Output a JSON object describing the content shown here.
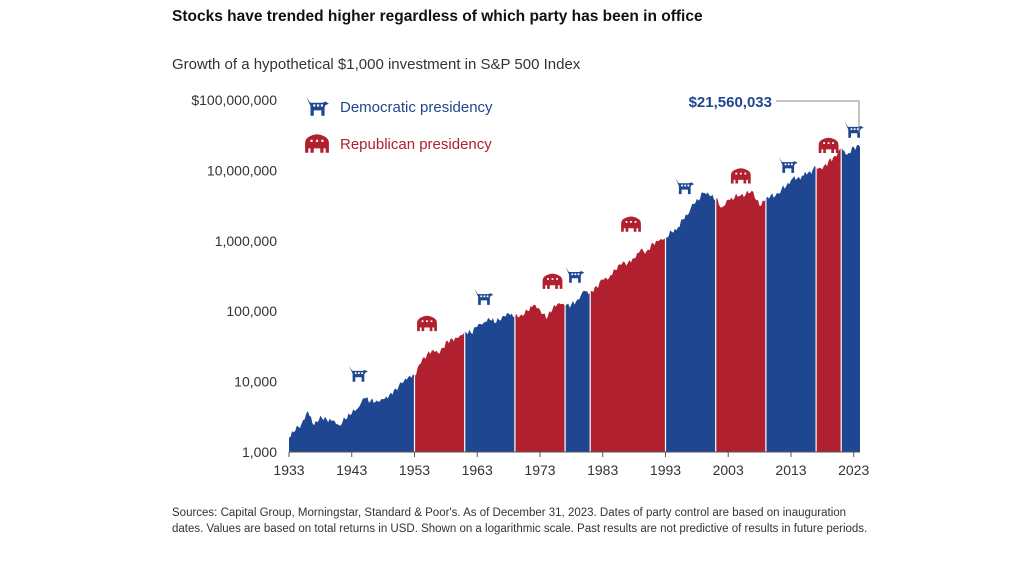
{
  "headline": "Stocks have trended higher regardless of which party has been in office",
  "footnote": "Sources: Capital Group, Morningstar, Standard & Poor's. As of December 31, 2023. Dates of party control are based on inauguration dates. Values are based on total returns in USD. Shown on a logarithmic scale. Past results are not predictive of results in future periods.",
  "colors": {
    "democratic": "#1f4690",
    "republican": "#b0202e",
    "axis": "#555555",
    "text": "#333333"
  },
  "chart_data": {
    "type": "area",
    "title": "Growth of a hypothetical $1,000 investment in S&P 500 Index",
    "scale": "log",
    "xlim": [
      1933,
      2024
    ],
    "ylim": [
      1000,
      100000000
    ],
    "x_ticks": [
      "1933",
      "1943",
      "1953",
      "1963",
      "1973",
      "1983",
      "1993",
      "2003",
      "2013",
      "2023"
    ],
    "y_ticks": [
      {
        "value": 1000,
        "label": "1,000"
      },
      {
        "value": 10000,
        "label": "10,000"
      },
      {
        "value": 100000,
        "label": "100,000"
      },
      {
        "value": 1000000,
        "label": "1,000,000"
      },
      {
        "value": 10000000,
        "label": "10,000,000"
      },
      {
        "value": 100000000,
        "label": "$100,000,000"
      }
    ],
    "legend": [
      {
        "party": "D",
        "label": "Democratic presidency",
        "icon": "donkey-icon"
      },
      {
        "party": "R",
        "label": "Republican presidency",
        "icon": "elephant-icon"
      }
    ],
    "periods": [
      {
        "party": "D",
        "start": 1933,
        "end": 1953
      },
      {
        "party": "R",
        "start": 1953,
        "end": 1961
      },
      {
        "party": "D",
        "start": 1961,
        "end": 1969
      },
      {
        "party": "R",
        "start": 1969,
        "end": 1977
      },
      {
        "party": "D",
        "start": 1977,
        "end": 1981
      },
      {
        "party": "R",
        "start": 1981,
        "end": 1993
      },
      {
        "party": "D",
        "start": 1993,
        "end": 2001
      },
      {
        "party": "R",
        "start": 2001,
        "end": 2009
      },
      {
        "party": "D",
        "start": 2009,
        "end": 2017
      },
      {
        "party": "R",
        "start": 2017,
        "end": 2021
      },
      {
        "party": "D",
        "start": 2021,
        "end": 2024
      }
    ],
    "series": [
      {
        "name": "Growth of $1,000",
        "x": [
          1933,
          1934,
          1935,
          1936,
          1937,
          1938,
          1939,
          1940,
          1941,
          1942,
          1943,
          1944,
          1945,
          1946,
          1947,
          1948,
          1949,
          1950,
          1951,
          1952,
          1953,
          1954,
          1955,
          1956,
          1957,
          1958,
          1959,
          1960,
          1961,
          1962,
          1963,
          1964,
          1965,
          1966,
          1967,
          1968,
          1969,
          1970,
          1971,
          1972,
          1973,
          1974,
          1975,
          1976,
          1977,
          1978,
          1979,
          1980,
          1981,
          1982,
          1983,
          1984,
          1985,
          1986,
          1987,
          1988,
          1989,
          1990,
          1991,
          1992,
          1993,
          1995,
          1997,
          1999,
          2000,
          2001,
          2002,
          2003,
          2005,
          2007,
          2008,
          2009,
          2011,
          2013,
          2015,
          2017,
          2018,
          2019,
          2020,
          2021,
          2022,
          2023,
          2024
        ],
        "values": [
          1600,
          2000,
          2500,
          3800,
          2400,
          3300,
          2900,
          2800,
          2400,
          2900,
          3500,
          4200,
          5800,
          5300,
          5400,
          5600,
          6500,
          8000,
          9500,
          11500,
          12000,
          18000,
          24000,
          28000,
          25000,
          37000,
          41000,
          42000,
          52000,
          49000,
          60000,
          68000,
          76000,
          68000,
          84000,
          93000,
          86000,
          90000,
          102000,
          123000,
          105000,
          77000,
          106000,
          131000,
          118000,
          125000,
          148000,
          196000,
          186000,
          226000,
          277000,
          294000,
          387000,
          459000,
          483000,
          563000,
          740000,
          718000,
          935000,
          1010000,
          1110000,
          1560000,
          2870000,
          4830000,
          4400000,
          3880000,
          3000000,
          3860000,
          4440000,
          4950000,
          3120000,
          3950000,
          4720000,
          7250000,
          8400000,
          10900000,
          10400000,
          13700000,
          16200000,
          20800000,
          17000000,
          21560033,
          21560033
        ]
      }
    ],
    "icons": [
      {
        "party": "D",
        "x": 1944,
        "y": 13000
      },
      {
        "party": "R",
        "x": 1955,
        "y": 68000
      },
      {
        "party": "D",
        "x": 1964,
        "y": 160000
      },
      {
        "party": "R",
        "x": 1975,
        "y": 270000
      },
      {
        "party": "D",
        "x": 1978.5,
        "y": 330000
      },
      {
        "party": "R",
        "x": 1987.5,
        "y": 1750000
      },
      {
        "party": "D",
        "x": 1996,
        "y": 6000000
      },
      {
        "party": "R",
        "x": 2005,
        "y": 8500000
      },
      {
        "party": "D",
        "x": 2012.5,
        "y": 12000000
      },
      {
        "party": "R",
        "x": 2019,
        "y": 23000000
      },
      {
        "party": "D",
        "x": 2023,
        "y": 38000000
      }
    ],
    "annotation": {
      "label": "$21,560,033",
      "value": 21560033,
      "x": 2024
    }
  }
}
